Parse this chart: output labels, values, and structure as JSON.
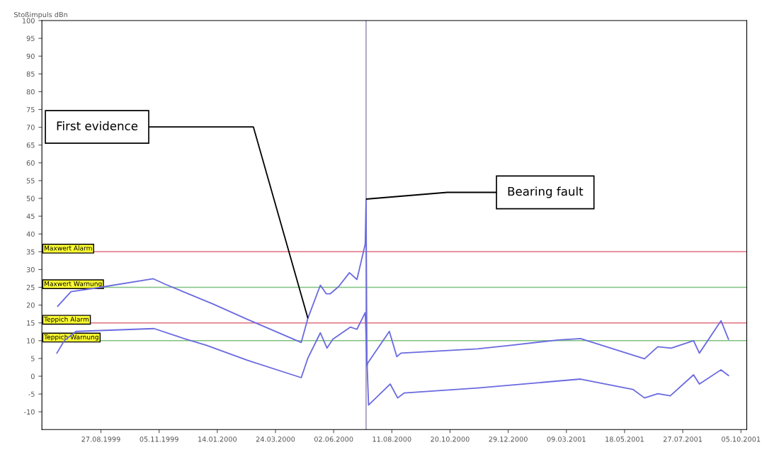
{
  "chart_data": {
    "type": "line",
    "ylabel": "Stoßimpuls dBn",
    "xlim": [
      "1999-06-17",
      "2001-10-12"
    ],
    "xticks": [
      {
        "value": "1999-08-27",
        "label": "27.08.1999"
      },
      {
        "value": "1999-11-05",
        "label": "05.11.1999"
      },
      {
        "value": "2000-01-14",
        "label": "14.01.2000"
      },
      {
        "value": "2000-03-24",
        "label": "24.03.2000"
      },
      {
        "value": "2000-06-02",
        "label": "02.06.2000"
      },
      {
        "value": "2000-08-11",
        "label": "11.08.2000"
      },
      {
        "value": "2000-10-20",
        "label": "20.10.2000"
      },
      {
        "value": "2000-12-29",
        "label": "29.12.2000"
      },
      {
        "value": "2001-03-09",
        "label": "09.03.2001"
      },
      {
        "value": "2001-05-18",
        "label": "18.05.2001"
      },
      {
        "value": "2001-07-27",
        "label": "27.07.2001"
      },
      {
        "value": "2001-10-05",
        "label": "05.10.2001"
      }
    ],
    "ylim": [
      -15,
      100
    ],
    "yticks": [
      -10,
      -5,
      0,
      5,
      10,
      15,
      20,
      25,
      30,
      35,
      40,
      45,
      50,
      55,
      60,
      65,
      70,
      75,
      80,
      85,
      90,
      95,
      100
    ],
    "grid": false,
    "legend": false,
    "marker": "none",
    "line_style": "solid",
    "series": [
      {
        "color": "#6a6ae0",
        "x": [
          "1999-07-06",
          "1999-07-22",
          "1999-08-21",
          "1999-10-29",
          "1999-11-13",
          "2000-01-09",
          "2000-02-19",
          "2000-04-24",
          "2000-05-02",
          "2000-05-17",
          "2000-05-24",
          "2000-05-29",
          "2000-06-08",
          "2000-06-21",
          "2000-06-30",
          "2000-07-10",
          "2000-07-11",
          "2000-07-12",
          "2000-07-13",
          "2000-08-08",
          "2000-08-17",
          "2000-08-22",
          "2000-11-22",
          "2001-01-01",
          "2001-02-27",
          "2001-03-26",
          "2001-06-11",
          "2001-06-27",
          "2001-07-13",
          "2001-08-09",
          "2001-08-16",
          "2001-09-11",
          "2001-09-20"
        ],
        "values": [
          19.7,
          23.8,
          24.8,
          27.4,
          25.8,
          20.3,
          16,
          9.5,
          16.3,
          25.6,
          23.2,
          23.2,
          25.2,
          29.1,
          27.2,
          37.2,
          49.8,
          2.8,
          3.7,
          12.6,
          5.5,
          6.5,
          7.7,
          8.7,
          10.2,
          10.6,
          4.9,
          8.3,
          7.9,
          10,
          6.5,
          15.6,
          10.4
        ]
      },
      {
        "color": "#6a6ae0",
        "x": [
          "1999-07-05",
          "1999-07-14",
          "1999-07-28",
          "1999-10-30",
          "1999-12-05",
          "2000-01-01",
          "2000-02-19",
          "2000-04-24",
          "2000-05-02",
          "2000-05-17",
          "2000-05-25",
          "2000-06-01",
          "2000-06-22",
          "2000-06-30",
          "2000-07-10",
          "2000-07-14",
          "2000-08-09",
          "2000-08-18",
          "2000-08-26",
          "2000-11-22",
          "2001-03-26",
          "2001-05-28",
          "2001-06-11",
          "2001-06-27",
          "2001-07-12",
          "2001-08-09",
          "2001-08-16",
          "2001-09-11",
          "2001-09-20"
        ],
        "values": [
          6.5,
          10,
          12.6,
          13.4,
          10.6,
          8.7,
          4.5,
          -0.4,
          5.1,
          12.2,
          7.9,
          10.4,
          13.8,
          13.2,
          17.9,
          -8.1,
          -2.2,
          -6.1,
          -4.7,
          -3.3,
          -0.8,
          -3.7,
          -6.1,
          -4.9,
          -5.5,
          0.4,
          -2.2,
          1.8,
          0.2
        ]
      }
    ],
    "ref_lines": [
      {
        "axis": "y",
        "value": 35,
        "label": "Maxwert Alarm",
        "color": "#e07080"
      },
      {
        "axis": "y",
        "value": 25,
        "label": "Maxwert Warnung",
        "color": "#80c080"
      },
      {
        "axis": "y",
        "value": 15,
        "label": "Teppich Alarm",
        "color": "#e07080"
      },
      {
        "axis": "y",
        "value": 10,
        "label": "Teppich Warnung",
        "color": "#80c080"
      },
      {
        "axis": "x",
        "value": "2000-07-11",
        "color": "#9080b0"
      }
    ],
    "annotations": [
      {
        "text": "First evidence",
        "x": "2000-05-02",
        "y": 16.3
      },
      {
        "text": "Bearing fault",
        "x": "2000-07-11",
        "y": 49.8
      }
    ]
  }
}
